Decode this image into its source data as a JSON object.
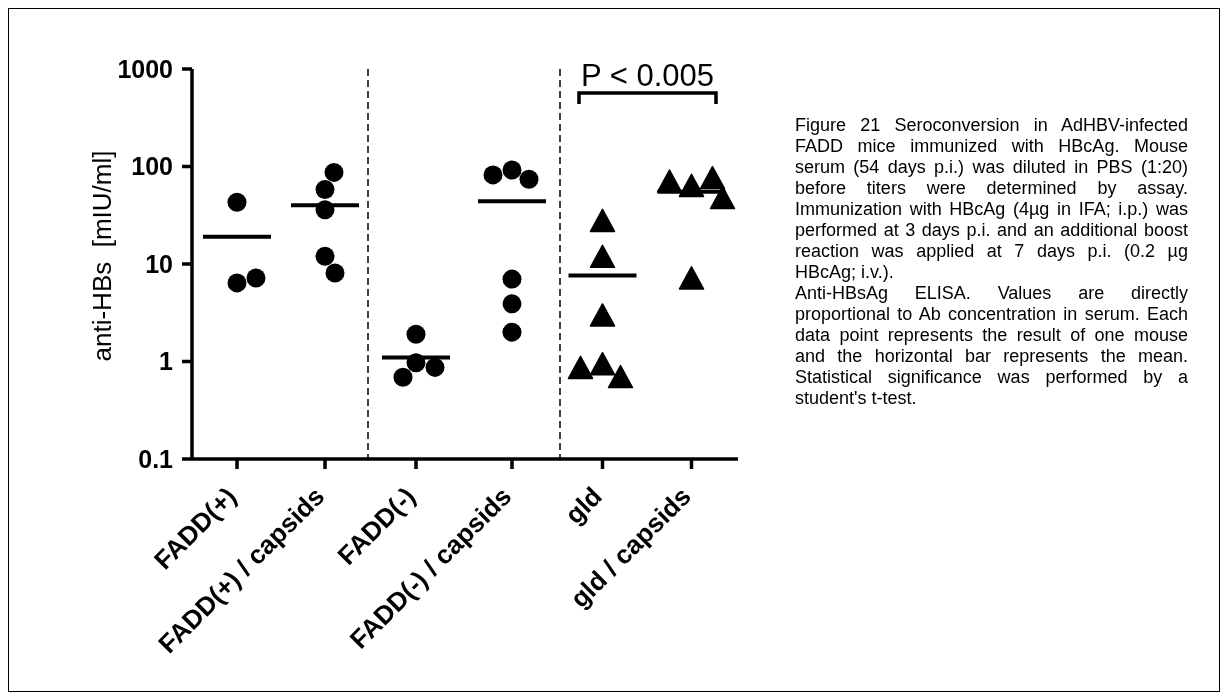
{
  "chart_data": [
    {
      "type": "scatter",
      "ylabel": "anti-HBs  [mIU/ml]",
      "categories": [
        "FADD(+)"
      ],
      "ylim": [
        0.1,
        1000
      ],
      "yticks": [
        0.1,
        1,
        10,
        100,
        1000
      ],
      "log": true,
      "series": [
        {
          "marker": "circle",
          "color": "#000000",
          "x": [
            "FADD(+)",
            "FADD(+)",
            "FADD(+)"
          ],
          "values": [
            43,
            6.4,
            7.2
          ]
        }
      ],
      "ref_lines": [
        {
          "axis": "y",
          "value": 19,
          "color": "#000000",
          "line_style": "solid"
        }
      ]
    },
    {
      "type": "scatter",
      "categories": [
        "FADD(+) / capsids"
      ],
      "ylim": [
        0.1,
        1000
      ],
      "log": true,
      "tick_labels": "x",
      "series": [
        {
          "marker": "circle",
          "color": "#000000",
          "x": [
            "FADD(+) / capsids",
            "FADD(+) / capsids",
            "FADD(+) / capsids",
            "FADD(+) / capsids",
            "FADD(+) / capsids"
          ],
          "values": [
            58,
            87,
            36,
            12,
            8.1
          ]
        }
      ],
      "ref_lines": [
        {
          "axis": "y",
          "value": 40,
          "color": "#000000",
          "line_style": "solid"
        }
      ]
    },
    {
      "type": "scatter",
      "categories": [
        "FADD(-)"
      ],
      "ylim": [
        0.1,
        1000
      ],
      "log": true,
      "tick_labels": "x",
      "series": [
        {
          "marker": "circle",
          "color": "#000000",
          "x": [
            "FADD(-)",
            "FADD(-)",
            "FADD(-)",
            "FADD(-)"
          ],
          "values": [
            1.9,
            0.97,
            0.87,
            0.69
          ]
        }
      ],
      "ref_lines": [
        {
          "axis": "y",
          "value": 1.1,
          "color": "#000000",
          "line_style": "solid"
        }
      ]
    },
    {
      "type": "scatter",
      "categories": [
        "FADD(-) / capsids"
      ],
      "ylim": [
        0.1,
        1000
      ],
      "log": true,
      "tick_labels": "x",
      "series": [
        {
          "marker": "circle",
          "color": "#000000",
          "x": [
            "FADD(-) / capsids",
            "FADD(-) / capsids",
            "FADD(-) / capsids",
            "FADD(-) / capsids",
            "FADD(-) / capsids",
            "FADD(-) / capsids"
          ],
          "values": [
            92,
            74,
            82,
            7.0,
            3.9,
            2.0
          ]
        }
      ],
      "ref_lines": [
        {
          "axis": "y",
          "value": 44,
          "color": "#000000",
          "line_style": "solid"
        }
      ]
    },
    {
      "type": "scatter",
      "categories": [
        "gld"
      ],
      "ylim": [
        0.1,
        1000
      ],
      "log": true,
      "tick_labels": "x",
      "annotations": [
        "P < 0.005"
      ],
      "series": [
        {
          "marker": "triangle",
          "color": "#000000",
          "x": [
            "gld",
            "gld",
            "gld",
            "gld",
            "gld",
            "gld"
          ],
          "values": [
            28,
            12,
            3.0,
            0.95,
            0.7,
            0.87
          ]
        }
      ],
      "ref_lines": [
        {
          "axis": "y",
          "value": 7.6,
          "color": "#000000",
          "line_style": "solid"
        }
      ]
    },
    {
      "type": "scatter",
      "categories": [
        "gld / capsids"
      ],
      "ylim": [
        0.1,
        1000
      ],
      "log": true,
      "tick_labels": "x",
      "series": [
        {
          "marker": "triangle",
          "color": "#000000",
          "x": [
            "gld / capsids",
            "gld / capsids",
            "gld / capsids",
            "gld / capsids",
            "gld / capsids"
          ],
          "values": [
            64,
            77,
            71,
            48,
            7.2
          ]
        }
      ],
      "ref_lines": [
        {
          "axis": "y",
          "value": 55,
          "color": "#000000",
          "line_style": "solid"
        }
      ]
    },
    {
      "type": "other",
      "annotations": [
        "Figure 21 Seroconversion in AdHBV-infected FADD mice immunized with HBcAg. Mouse serum (54 days p.i.) was diluted in PBS (1:20) before titers were determined by assay. Immunization with HBcAg (4µg in IFA; i.p.) was performed at 3 days p.i. and an additional boost reaction was applied at 7 days p.i. (0.2 µg HBcAg; i.v.).",
        "Anti-HBsAg ELISA. Values are directly proportional to Ab concentration in serum. Each data point represents the result of one mouse and the horizontal bar represents the mean. Statistical significance was performed by a student's t-test."
      ]
    }
  ]
}
